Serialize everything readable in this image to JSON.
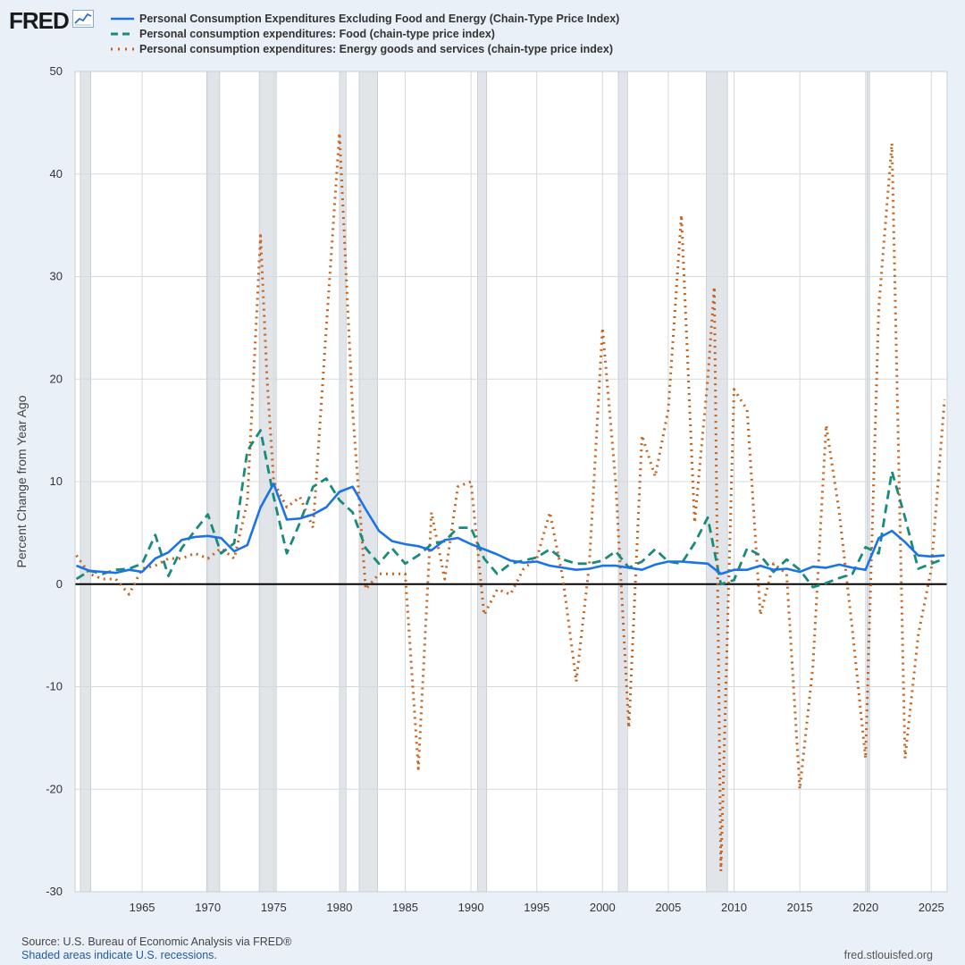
{
  "brand": {
    "logo_text": "FRED",
    "logo_icon": "chart-line-icon"
  },
  "chart_data": {
    "type": "line",
    "title": "",
    "xlabel": "",
    "ylabel": "Percent Change from Year Ago",
    "xlim": [
      1959.9,
      2026.2
    ],
    "ylim": [
      -30,
      50
    ],
    "yticks": [
      -30,
      -20,
      -10,
      0,
      10,
      20,
      30,
      40,
      50
    ],
    "ytick_labels": [
      "-30",
      "-20",
      "-10",
      "0",
      "10",
      "20",
      "30",
      "40",
      "50"
    ],
    "xticks": [
      1965,
      1970,
      1975,
      1980,
      1985,
      1990,
      1995,
      2000,
      2005,
      2010,
      2015,
      2020,
      2025
    ],
    "xtick_labels": [
      "1965",
      "1970",
      "1975",
      "1980",
      "1985",
      "1990",
      "1995",
      "2000",
      "2005",
      "2010",
      "2015",
      "2020",
      "2025"
    ],
    "grid": true,
    "legend_position": "top-left",
    "recessions": [
      [
        1960.3,
        1961.1
      ],
      [
        1969.9,
        1970.9
      ],
      [
        1973.9,
        1975.2
      ],
      [
        1980.0,
        1980.5
      ],
      [
        1981.5,
        1982.9
      ],
      [
        1990.5,
        1991.2
      ],
      [
        2001.2,
        2001.9
      ],
      [
        2007.9,
        2009.5
      ],
      [
        2020.1,
        2020.3
      ]
    ],
    "series": [
      {
        "name": "Personal Consumption Expenditures Excluding Food and Energy (Chain-Type Price Index)",
        "color": "#1a73e8",
        "style": "solid",
        "x": [
          1960,
          1961,
          1962,
          1963,
          1964,
          1965,
          1966,
          1967,
          1968,
          1969,
          1970,
          1971,
          1972,
          1973,
          1974,
          1975,
          1976,
          1977,
          1978,
          1979,
          1980,
          1981,
          1982,
          1983,
          1984,
          1985,
          1986,
          1987,
          1988,
          1989,
          1990,
          1991,
          1992,
          1993,
          1994,
          1995,
          1996,
          1997,
          1998,
          1999,
          2000,
          2001,
          2002,
          2003,
          2004,
          2005,
          2006,
          2007,
          2008,
          2009,
          2010,
          2011,
          2012,
          2013,
          2014,
          2015,
          2016,
          2017,
          2018,
          2019,
          2020,
          2021,
          2022,
          2023,
          2024,
          2025,
          2026
        ],
        "y": [
          1.8,
          1.3,
          1.2,
          1.1,
          1.4,
          1.2,
          2.5,
          3.1,
          4.3,
          4.6,
          4.7,
          4.5,
          3.2,
          3.8,
          7.5,
          9.8,
          6.3,
          6.4,
          6.8,
          7.5,
          9.0,
          9.5,
          7.3,
          5.2,
          4.2,
          3.9,
          3.7,
          3.3,
          4.3,
          4.5,
          3.9,
          3.4,
          2.9,
          2.3,
          2.1,
          2.2,
          1.8,
          1.6,
          1.4,
          1.5,
          1.8,
          1.8,
          1.6,
          1.4,
          1.9,
          2.2,
          2.2,
          2.1,
          2.0,
          1.0,
          1.4,
          1.4,
          1.8,
          1.4,
          1.5,
          1.2,
          1.7,
          1.6,
          1.9,
          1.6,
          1.4,
          4.5,
          5.2,
          4.1,
          2.8,
          2.7,
          2.8
        ]
      },
      {
        "name": "Personal consumption expenditures: Food (chain-type price index)",
        "color": "#1a8a7a",
        "style": "dashed",
        "x": [
          1960,
          1961,
          1962,
          1963,
          1964,
          1965,
          1966,
          1967,
          1968,
          1969,
          1970,
          1971,
          1972,
          1973,
          1974,
          1975,
          1976,
          1977,
          1978,
          1979,
          1980,
          1981,
          1982,
          1983,
          1984,
          1985,
          1986,
          1987,
          1988,
          1989,
          1990,
          1991,
          1992,
          1993,
          1994,
          1995,
          1996,
          1997,
          1998,
          1999,
          2000,
          2001,
          2002,
          2003,
          2004,
          2005,
          2006,
          2007,
          2008,
          2009,
          2010,
          2011,
          2012,
          2013,
          2014,
          2015,
          2016,
          2017,
          2018,
          2019,
          2020,
          2021,
          2022,
          2023,
          2024,
          2025,
          2026
        ],
        "y": [
          0.5,
          1.3,
          1.0,
          1.4,
          1.5,
          2.0,
          4.8,
          0.8,
          3.5,
          5.2,
          6.8,
          3.0,
          4.0,
          13.0,
          15.0,
          8.5,
          3.0,
          6.0,
          9.5,
          10.3,
          8.2,
          7.0,
          3.5,
          2.0,
          3.5,
          2.0,
          2.8,
          3.9,
          4.2,
          5.5,
          5.5,
          2.5,
          1.0,
          2.0,
          2.3,
          2.6,
          3.4,
          2.4,
          2.0,
          2.0,
          2.3,
          3.2,
          1.6,
          2.2,
          3.4,
          2.2,
          2.0,
          4.0,
          6.5,
          0.0,
          0.4,
          3.5,
          2.8,
          1.2,
          2.4,
          1.4,
          -0.3,
          0.1,
          0.6,
          1.0,
          3.6,
          3.0,
          11.0,
          6.5,
          1.5,
          2.0,
          2.5
        ]
      },
      {
        "name": "Personal consumption expenditures: Energy goods and services (chain-type price index)",
        "color": "#c8621b",
        "style": "dotted",
        "x": [
          1960,
          1961,
          1962,
          1963,
          1964,
          1965,
          1966,
          1967,
          1968,
          1969,
          1970,
          1971,
          1972,
          1973,
          1974,
          1974.5,
          1975,
          1976,
          1977,
          1978,
          1979,
          1980,
          1981,
          1982,
          1983,
          1984,
          1985,
          1986,
          1987,
          1988,
          1989,
          1990,
          1991,
          1992,
          1993,
          1994,
          1995,
          1996,
          1997,
          1998,
          1999,
          2000,
          2001,
          2002,
          2003,
          2004,
          2005,
          2006,
          2007,
          2008,
          2008.5,
          2009,
          2010,
          2011,
          2012,
          2013,
          2014,
          2015,
          2016,
          2017,
          2018,
          2019,
          2020,
          2021,
          2022,
          2023,
          2024,
          2025,
          2026
        ],
        "y": [
          2.8,
          1.0,
          0.5,
          0.5,
          -1.0,
          1.5,
          1.8,
          2.5,
          2.5,
          3.0,
          2.5,
          3.5,
          2.5,
          8.0,
          34.0,
          20.0,
          10.0,
          7.5,
          8.5,
          5.5,
          25.0,
          44.0,
          17.0,
          -0.5,
          1.0,
          1.0,
          1.0,
          -18.0,
          7.0,
          0.5,
          9.5,
          10.0,
          -3.0,
          -0.5,
          -1.0,
          1.5,
          2.5,
          7.0,
          0.5,
          -9.5,
          2.0,
          25.0,
          10.0,
          -14.0,
          14.5,
          10.5,
          17.0,
          36.0,
          6.0,
          20.0,
          29.0,
          -28.0,
          19.0,
          17.0,
          -3.0,
          2.0,
          1.0,
          -20.0,
          -8.0,
          15.5,
          7.0,
          -4.5,
          -17.0,
          27.0,
          43.0,
          -17.0,
          -5.0,
          1.5,
          18.0
        ]
      }
    ]
  },
  "footer": {
    "source": "Source: U.S. Bureau of Economic Analysis via FRED®",
    "recession_note": "Shaded areas indicate U.S. recessions.",
    "site": "fred.stlouisfed.org"
  }
}
